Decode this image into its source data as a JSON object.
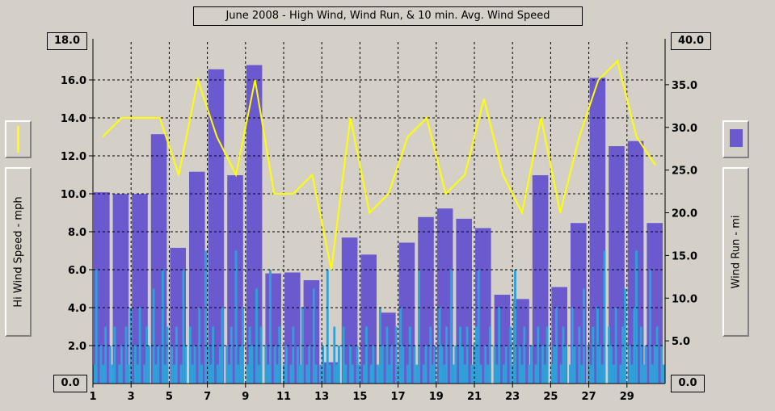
{
  "chart_data": {
    "type": "bar",
    "title": "June 2008 - High Wind, Wind Run, & 10 min. Avg. Wind Speed",
    "ylabel": "Hi Wind Speed - mph",
    "y2label": "Wind Run - mi",
    "ylim": [
      0,
      18
    ],
    "y2lim": [
      0,
      40
    ],
    "yticks": [
      "0.0",
      "2.0",
      "4.0",
      "6.0",
      "8.0",
      "10.0",
      "12.0",
      "14.0",
      "16.0",
      "18.0"
    ],
    "y2ticks": [
      "0.0",
      "5.0",
      "10.0",
      "15.0",
      "20.0",
      "25.0",
      "30.0",
      "35.0",
      "40.0"
    ],
    "xticks": [
      "1",
      "3",
      "5",
      "7",
      "9",
      "11",
      "13",
      "15",
      "17",
      "19",
      "21",
      "23",
      "25",
      "27",
      "29"
    ],
    "days": [
      1,
      2,
      3,
      4,
      5,
      6,
      7,
      8,
      9,
      10,
      11,
      12,
      13,
      14,
      15,
      16,
      17,
      18,
      19,
      20,
      21,
      22,
      23,
      24,
      25,
      26,
      27,
      28,
      29,
      30
    ],
    "wind_run_mi": [
      22.4,
      22.2,
      22.2,
      29.2,
      15.9,
      24.8,
      36.8,
      24.4,
      37.3,
      12.9,
      13.0,
      12.1,
      2.5,
      17.1,
      15.1,
      8.3,
      16.5,
      19.5,
      20.5,
      19.3,
      18.2,
      10.4,
      9.9,
      24.4,
      11.3,
      18.8,
      35.8,
      27.8,
      28.4,
      18.8
    ],
    "hi_wind_mph": [
      13.0,
      14.0,
      14.0,
      14.0,
      11.0,
      16.0,
      13.0,
      11.0,
      16.0,
      10.0,
      10.0,
      11.0,
      6.0,
      14.0,
      9.0,
      10.0,
      13.0,
      14.0,
      10.0,
      11.0,
      15.0,
      11.0,
      9.0,
      14.0,
      9.0,
      13.0,
      16.0,
      17.0,
      13.0,
      11.5
    ],
    "avg_wind_mph": [
      1,
      6,
      0,
      2,
      1,
      3,
      0,
      2,
      1,
      3,
      0,
      1,
      2,
      0,
      3,
      1,
      4,
      0,
      2,
      1,
      4,
      0,
      1,
      3,
      2,
      0,
      5,
      1,
      2,
      0,
      6,
      1,
      3,
      0,
      2,
      1,
      3,
      0,
      1,
      6,
      2,
      0,
      3,
      1,
      2,
      0,
      4,
      1,
      0,
      7,
      2,
      1,
      3,
      0,
      1,
      2,
      4,
      0,
      2,
      1,
      3,
      0,
      7,
      1,
      2,
      4,
      0,
      1,
      3,
      2,
      0,
      5,
      1,
      3,
      0,
      2,
      1,
      6,
      0,
      2,
      1,
      3,
      0,
      1,
      2,
      0,
      1,
      3,
      0,
      2,
      1,
      4,
      0,
      1,
      2,
      0,
      5,
      1,
      0,
      1,
      2,
      0,
      6,
      1,
      0,
      3,
      1,
      2,
      0,
      3,
      1,
      0,
      2,
      1,
      0,
      2,
      1,
      0,
      1,
      3,
      0,
      1,
      2,
      0,
      1,
      4,
      2,
      0,
      3,
      1,
      2,
      0,
      3,
      1,
      4,
      2,
      0,
      1,
      3,
      0,
      2,
      1,
      6,
      0,
      1,
      2,
      0,
      3,
      1,
      2,
      0,
      4,
      2,
      1,
      3,
      0,
      6,
      1,
      2,
      0,
      3,
      2,
      1,
      3,
      0,
      1,
      2,
      3,
      6,
      1,
      0,
      2,
      1,
      3,
      0,
      2,
      1,
      4,
      0,
      1,
      2,
      0,
      3,
      1,
      6,
      0,
      2,
      1,
      3,
      0,
      1,
      2,
      0,
      1,
      3,
      0,
      2,
      1,
      3,
      0,
      1,
      2,
      4,
      0,
      1,
      3,
      2,
      0,
      1,
      4,
      2,
      0,
      3,
      1,
      5,
      0,
      2,
      1,
      3,
      0,
      4,
      2,
      1,
      7,
      0,
      3,
      2,
      1,
      4,
      0,
      1,
      3,
      5,
      0,
      2,
      1,
      4,
      7,
      0,
      3,
      1,
      2,
      0,
      6,
      1,
      2,
      3,
      0,
      2,
      1
    ],
    "colors": {
      "bars": "#6a5acd",
      "hi_line": "#ffff00",
      "avg_fill": "#30a0d8",
      "grid": "#000000",
      "background": "#d4d0c8"
    },
    "grid": true
  }
}
